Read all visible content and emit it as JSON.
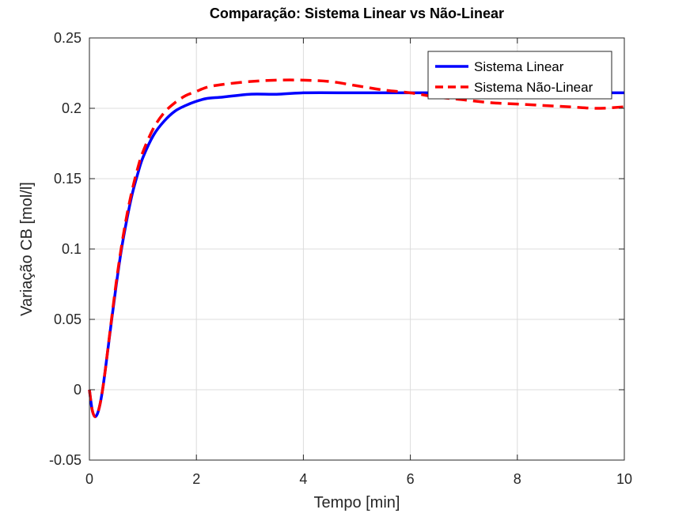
{
  "chart_data": {
    "type": "line",
    "title": "Comparação: Sistema Linear vs Não-Linear",
    "xlabel": "Tempo [min]",
    "ylabel": "Variação CB [mol/l]",
    "xlim": [
      0,
      10
    ],
    "ylim": [
      -0.05,
      0.25
    ],
    "xticks": [
      0,
      2,
      4,
      6,
      8,
      10
    ],
    "yticks": [
      -0.05,
      0,
      0.05,
      0.1,
      0.15,
      0.2,
      0.25
    ],
    "xtick_labels": [
      "0",
      "2",
      "4",
      "6",
      "8",
      "10"
    ],
    "ytick_labels": [
      "-0.05",
      "0",
      "0.05",
      "0.1",
      "0.15",
      "0.2",
      "0.25"
    ],
    "grid": true,
    "legend_position": "top-right",
    "series": [
      {
        "name": "Sistema Linear",
        "color": "#0000ff",
        "style": "solid",
        "x": [
          0,
          0.05,
          0.1,
          0.15,
          0.2,
          0.25,
          0.3,
          0.4,
          0.5,
          0.6,
          0.7,
          0.8,
          0.9,
          1.0,
          1.2,
          1.4,
          1.6,
          1.8,
          2.0,
          2.2,
          2.5,
          3.0,
          3.5,
          4.0,
          5.0,
          6.0,
          7.0,
          8.0,
          9.0,
          10.0
        ],
        "y": [
          0,
          -0.014,
          -0.019,
          -0.017,
          -0.01,
          0.001,
          0.015,
          0.045,
          0.074,
          0.1,
          0.121,
          0.139,
          0.153,
          0.165,
          0.181,
          0.191,
          0.198,
          0.202,
          0.205,
          0.207,
          0.208,
          0.21,
          0.21,
          0.211,
          0.211,
          0.211,
          0.211,
          0.211,
          0.211,
          0.211
        ]
      },
      {
        "name": "Sistema Não-Linear",
        "color": "#ff0000",
        "style": "dashed",
        "x": [
          0,
          0.05,
          0.1,
          0.15,
          0.2,
          0.25,
          0.3,
          0.4,
          0.5,
          0.6,
          0.7,
          0.8,
          0.9,
          1.0,
          1.2,
          1.4,
          1.6,
          1.8,
          2.0,
          2.2,
          2.5,
          3.0,
          3.5,
          4.0,
          4.5,
          5.0,
          5.5,
          6.0,
          6.5,
          7.0,
          7.5,
          8.0,
          8.5,
          9.0,
          9.5,
          10.0
        ],
        "y": [
          0,
          -0.014,
          -0.019,
          -0.017,
          -0.01,
          0.001,
          0.015,
          0.046,
          0.076,
          0.102,
          0.124,
          0.142,
          0.157,
          0.169,
          0.186,
          0.197,
          0.204,
          0.209,
          0.212,
          0.215,
          0.217,
          0.219,
          0.22,
          0.22,
          0.219,
          0.216,
          0.213,
          0.211,
          0.208,
          0.206,
          0.204,
          0.203,
          0.202,
          0.201,
          0.2,
          0.201
        ]
      }
    ]
  }
}
